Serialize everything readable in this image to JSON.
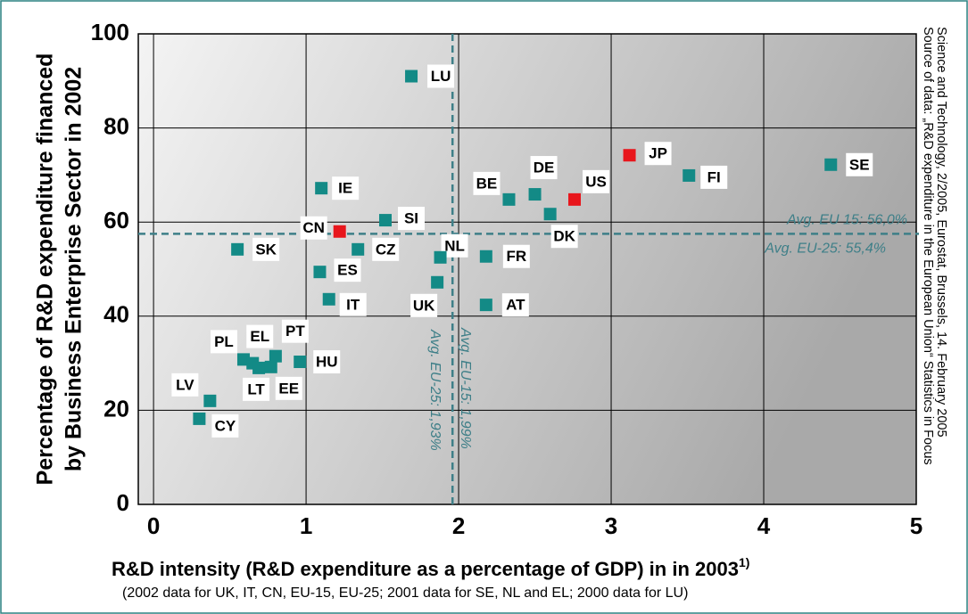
{
  "chart_data": {
    "type": "scatter",
    "ylabel_lines": [
      "Percentage of R&D expenditure financed",
      "by Business Enterprise Sector in 2002"
    ],
    "xlabel": "R&D intensity (R&D expenditure as a percentage of GDP) in in 2003",
    "xlabel_sup": "1)",
    "footnote": "(2002 data for UK, IT, CN, EU-15, EU-25; 2001 data for SE, NL and EL; 2000 data for LU)",
    "source_lines": [
      "Source of data: „R&D expenditure in the European Union“ Statistics in Focus",
      "Science and Technology, 2/2005, Eurostat, Brussels, 14. February 2005"
    ],
    "labels": [
      "LU",
      "IE",
      "CN",
      "SI",
      "CZ",
      "SK",
      "ES",
      "IT",
      "NL",
      "UK",
      "BE",
      "DE",
      "DK",
      "US",
      "JP",
      "FI",
      "SE",
      "FR",
      "AT",
      "PL",
      "EL",
      "LT",
      "EE",
      "PT",
      "HU",
      "LV",
      "CY"
    ],
    "x": [
      1.69,
      1.1,
      1.22,
      1.52,
      1.34,
      0.55,
      1.09,
      1.15,
      1.88,
      1.86,
      2.33,
      2.5,
      2.6,
      2.76,
      3.12,
      3.51,
      4.44,
      2.18,
      2.18,
      0.59,
      0.65,
      0.69,
      0.77,
      0.8,
      0.96,
      0.37,
      0.3
    ],
    "values": [
      91,
      67.2,
      58,
      60.4,
      54.2,
      54.2,
      49.4,
      43.6,
      52.5,
      47.2,
      64.8,
      65.9,
      61.7,
      64.8,
      74.2,
      69.9,
      72.2,
      52.7,
      42.4,
      30.8,
      30,
      29,
      29.2,
      31.5,
      30.3,
      22,
      18.2
    ],
    "colors": [
      "#138a86",
      "#138a86",
      "#e8161c",
      "#138a86",
      "#138a86",
      "#138a86",
      "#138a86",
      "#138a86",
      "#138a86",
      "#138a86",
      "#138a86",
      "#138a86",
      "#138a86",
      "#e8161c",
      "#e8161c",
      "#138a86",
      "#138a86",
      "#138a86",
      "#138a86",
      "#138a86",
      "#138a86",
      "#138a86",
      "#138a86",
      "#138a86",
      "#138a86",
      "#138a86",
      "#138a86"
    ],
    "xlim": [
      -0.1,
      5
    ],
    "xticks": [
      0,
      1,
      2,
      3,
      4,
      5
    ],
    "ylim": [
      0,
      100
    ],
    "yticks": [
      0,
      20,
      40,
      60,
      80,
      100
    ],
    "grid": true,
    "avg_x": 1.96,
    "avg_y": 57.5,
    "avg_x_labels": [
      "Avg. EU-15: 1,99%",
      "Avg. EU-25: 1,93%"
    ],
    "avg_y_labels": [
      "Avg. EU 15: 56,0%",
      "Avg. EU-25: 55,4%"
    ]
  }
}
